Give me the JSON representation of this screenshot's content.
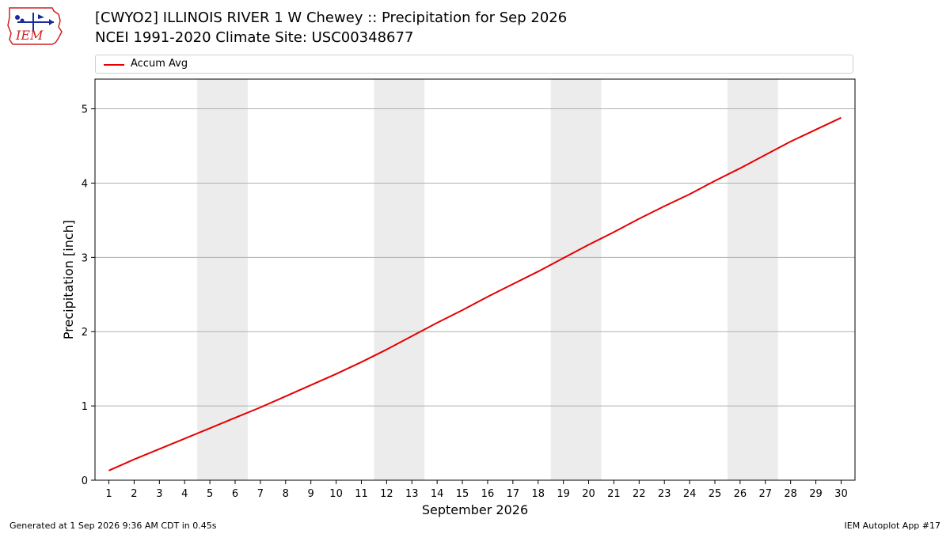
{
  "header": {
    "title_line1": "[CWYO2] ILLINOIS RIVER 1 W Chewey :: Precipitation for Sep 2026",
    "title_line2": "NCEI 1991-2020 Climate Site: USC00348677"
  },
  "logo": {
    "text": "IEM",
    "icon": "iem-logo-icon"
  },
  "legend": {
    "label": "Accum Avg",
    "color": "#e60000"
  },
  "footer": {
    "left": "Generated at 1 Sep 2026 9:36 AM CDT in 0.45s",
    "right": "IEM Autoplot App #17"
  },
  "colors": {
    "line": "#e60000",
    "weekend_band": "#ececec",
    "grid": "#b0b0b0"
  },
  "chart_data": {
    "type": "line",
    "xlabel": "September 2026",
    "ylabel": "Precipitation [inch]",
    "ylim": [
      0,
      5.4
    ],
    "yticks": [
      0,
      1,
      2,
      3,
      4,
      5
    ],
    "xlim": [
      0.45,
      30.55
    ],
    "grid": "horizontal",
    "legend_position": "top",
    "weekend_bands": [
      [
        4.5,
        6.5
      ],
      [
        11.5,
        13.5
      ],
      [
        18.5,
        20.5
      ],
      [
        25.5,
        27.5
      ]
    ],
    "x": [
      1,
      2,
      3,
      4,
      5,
      6,
      7,
      8,
      9,
      10,
      11,
      12,
      13,
      14,
      15,
      16,
      17,
      18,
      19,
      20,
      21,
      22,
      23,
      24,
      25,
      26,
      27,
      28,
      29,
      30
    ],
    "series": [
      {
        "name": "Accum Avg",
        "values": [
          0.13,
          0.28,
          0.42,
          0.56,
          0.7,
          0.84,
          0.98,
          1.13,
          1.28,
          1.43,
          1.59,
          1.76,
          1.94,
          2.12,
          2.29,
          2.47,
          2.64,
          2.81,
          2.99,
          3.17,
          3.34,
          3.52,
          3.69,
          3.85,
          4.03,
          4.2,
          4.38,
          4.56,
          4.72,
          4.88
        ]
      }
    ]
  }
}
